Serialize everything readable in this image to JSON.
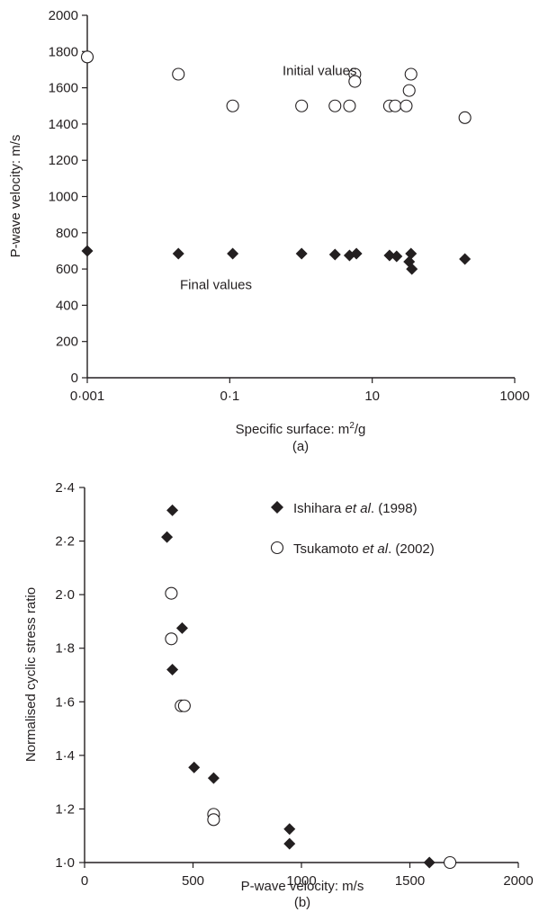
{
  "chart_data": [
    {
      "type": "scatter",
      "panel_label": "(a)",
      "xlabel": "Specific surface: m",
      "xlabel_sup": "2",
      "xlabel_tail": "/g",
      "ylabel": "P-wave velocity: m/s",
      "x_scale": "log",
      "xlim": [
        0.001,
        1000
      ],
      "ylim": [
        0,
        2000
      ],
      "grid": false,
      "x_ticks": [
        0.001,
        0.1,
        10,
        1000
      ],
      "x_tick_labels": [
        "0·001",
        "0·1",
        "10",
        "1000"
      ],
      "y_ticks": [
        0,
        200,
        400,
        600,
        800,
        1000,
        1200,
        1400,
        1600,
        1800,
        2000
      ],
      "y_tick_labels": [
        "0",
        "200",
        "400",
        "600",
        "800",
        "1000",
        "1200",
        "1400",
        "1600",
        "1800",
        "2000"
      ],
      "annotations": [
        {
          "text": "Initial values",
          "x": 0.55,
          "y": 1670
        },
        {
          "text": "Final values",
          "x": 0.02,
          "y": 490
        }
      ],
      "series": [
        {
          "marker": "open-circle",
          "points": [
            [
              0.001,
              1770
            ],
            [
              0.019,
              1675
            ],
            [
              0.11,
              1500
            ],
            [
              1.02,
              1500
            ],
            [
              3.0,
              1500
            ],
            [
              4.8,
              1500
            ],
            [
              5.7,
              1675
            ],
            [
              5.7,
              1635
            ],
            [
              17.5,
              1500
            ],
            [
              21,
              1500
            ],
            [
              30,
              1500
            ],
            [
              33,
              1585
            ],
            [
              35,
              1675
            ],
            [
              200,
              1435
            ]
          ]
        },
        {
          "marker": "filled-diamond",
          "points": [
            [
              0.001,
              700
            ],
            [
              0.019,
              685
            ],
            [
              0.11,
              685
            ],
            [
              1.02,
              685
            ],
            [
              3.0,
              680
            ],
            [
              4.8,
              675
            ],
            [
              6.0,
              685
            ],
            [
              17.5,
              675
            ],
            [
              22,
              670
            ],
            [
              33,
              640
            ],
            [
              35,
              685
            ],
            [
              36,
              600
            ],
            [
              200,
              655
            ]
          ]
        }
      ]
    },
    {
      "type": "scatter",
      "panel_label": "(b)",
      "xlabel": "P-wave velocity: m/s",
      "ylabel": "Normalised cyclic stress ratio",
      "xlim": [
        0,
        2000
      ],
      "ylim": [
        1.0,
        2.4
      ],
      "grid": false,
      "legend_position": "top-right",
      "x_ticks": [
        0,
        500,
        1000,
        1500,
        2000
      ],
      "x_tick_labels": [
        "0",
        "500",
        "1000",
        "1500",
        "2000"
      ],
      "y_ticks": [
        1.0,
        1.2,
        1.4,
        1.6,
        1.8,
        2.0,
        2.2,
        2.4
      ],
      "y_tick_labels": [
        "1·0",
        "1·2",
        "1·4",
        "1·6",
        "1·8",
        "2·0",
        "2·2",
        "2·4"
      ],
      "series": [
        {
          "name_pre": "Ishihara ",
          "name_em": "et al",
          "name_post": ". (1998)",
          "marker": "filled-diamond",
          "points": [
            [
              380,
              2.215
            ],
            [
              405,
              2.315
            ],
            [
              450,
              1.875
            ],
            [
              405,
              1.72
            ],
            [
              505,
              1.355
            ],
            [
              595,
              1.315
            ],
            [
              945,
              1.125
            ],
            [
              945,
              1.07
            ],
            [
              1590,
              1.0
            ]
          ]
        },
        {
          "name_pre": "Tsukamoto ",
          "name_em": "et al",
          "name_post": ". (2002)",
          "marker": "open-circle",
          "points": [
            [
              400,
              2.005
            ],
            [
              400,
              1.835
            ],
            [
              445,
              1.585
            ],
            [
              460,
              1.585
            ],
            [
              595,
              1.18
            ],
            [
              595,
              1.16
            ],
            [
              1685,
              1.0
            ]
          ]
        }
      ]
    }
  ]
}
